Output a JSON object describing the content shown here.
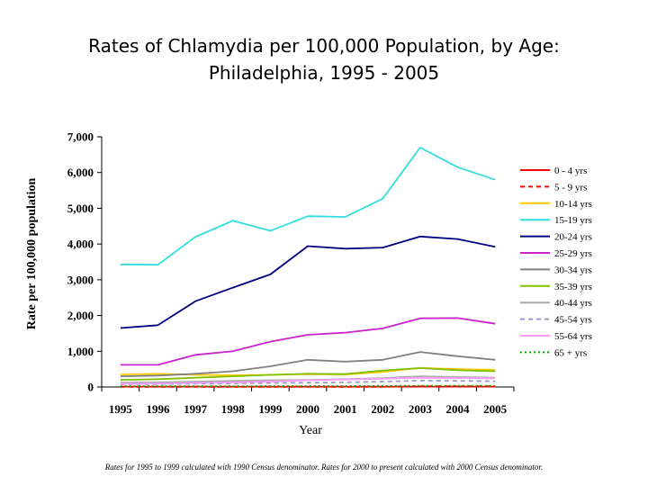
{
  "chart_data": {
    "type": "line",
    "title_lines": [
      "Rates of Chlamydia per 100,000 Population, by Age:",
      "Philadelphia, 1995 - 2005"
    ],
    "ylabel": "Rate per 100,000 population",
    "xlabel": "Year",
    "footnote": "Rates for 1995 to 1999 calculated with 1990 Census denominator.  Rates for 2000 to present calculated with 2000 Census denominator.",
    "x": [
      "1995",
      "1996",
      "1997",
      "1998",
      "1999",
      "2000",
      "2001",
      "2002",
      "2003",
      "2004",
      "2005"
    ],
    "ylim": [
      0,
      7000
    ],
    "yticks": [
      0,
      1000,
      2000,
      3000,
      4000,
      5000,
      6000,
      7000
    ],
    "ytick_labels": [
      "0",
      "1,000",
      "2,000",
      "3,000",
      "4,000",
      "5,000",
      "6,000",
      "7,000"
    ],
    "legend_position": "right",
    "series": [
      {
        "name": "0 - 4 yrs",
        "color": "#ff0000",
        "dash": "solid",
        "values": [
          10,
          10,
          10,
          10,
          10,
          10,
          10,
          10,
          10,
          10,
          10
        ]
      },
      {
        "name": "5 - 9 yrs",
        "color": "#ff0000",
        "dash": "dashed",
        "values": [
          5,
          5,
          5,
          5,
          5,
          5,
          5,
          5,
          20,
          20,
          20
        ]
      },
      {
        "name": "10-14 yrs",
        "color": "#ffcc00",
        "dash": "solid",
        "values": [
          350,
          370,
          340,
          330,
          340,
          360,
          350,
          420,
          540,
          500,
          480
        ]
      },
      {
        "name": "15-19 yrs",
        "color": "#33dddd",
        "dash": "solid",
        "values": [
          3430,
          3420,
          4200,
          4650,
          4370,
          4780,
          4760,
          5270,
          6700,
          6150,
          5800
        ]
      },
      {
        "name": "20-24 yrs",
        "color": "#000080",
        "dash": "solid",
        "values": [
          1650,
          1730,
          2400,
          2780,
          3150,
          3940,
          3870,
          3900,
          4210,
          4140,
          3920
        ]
      },
      {
        "name": "25-29 yrs",
        "color": "#cc22cc",
        "dash": "solid",
        "values": [
          620,
          620,
          900,
          1000,
          1270,
          1460,
          1520,
          1640,
          1920,
          1930,
          1770
        ]
      },
      {
        "name": "30-34 yrs",
        "color": "#808080",
        "dash": "solid",
        "values": [
          300,
          320,
          370,
          440,
          580,
          760,
          710,
          760,
          980,
          860,
          760
        ]
      },
      {
        "name": "35-39 yrs",
        "color": "#80c000",
        "dash": "solid",
        "values": [
          200,
          220,
          260,
          300,
          340,
          370,
          360,
          460,
          530,
          470,
          440
        ]
      },
      {
        "name": "40-44 yrs",
        "color": "#aaaaaa",
        "dash": "solid",
        "values": [
          120,
          130,
          150,
          170,
          190,
          200,
          220,
          250,
          300,
          280,
          260
        ]
      },
      {
        "name": "45-54 yrs",
        "color": "#9999cc",
        "dash": "dashed",
        "values": [
          80,
          80,
          90,
          100,
          110,
          120,
          130,
          150,
          180,
          170,
          160
        ]
      },
      {
        "name": "55-64 yrs",
        "color": "#ff99ff",
        "dash": "solid",
        "values": [
          90,
          100,
          110,
          130,
          150,
          190,
          210,
          230,
          260,
          250,
          240
        ]
      },
      {
        "name": "65 + yrs",
        "color": "#00aa00",
        "dash": "dotted",
        "values": [
          20,
          20,
          20,
          20,
          25,
          25,
          25,
          30,
          35,
          35,
          35
        ]
      }
    ]
  }
}
